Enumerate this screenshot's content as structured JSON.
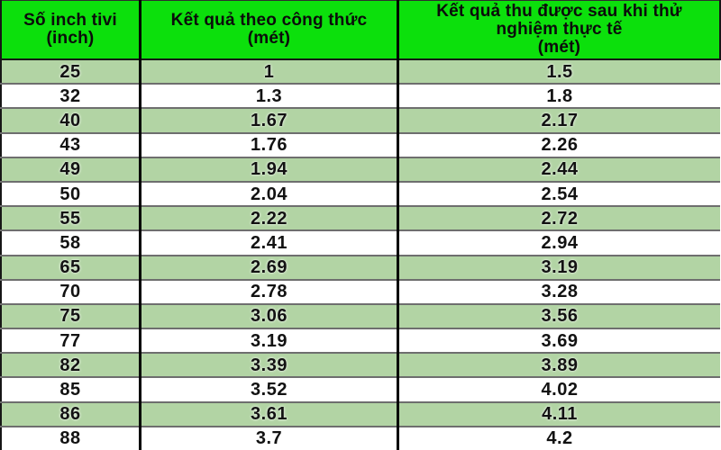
{
  "table": {
    "header": [
      "Số inch tivi\n(inch)",
      "Kết quả theo công thức\n(mét)",
      "Kết quả thu được sau khi thử\nnghiệm thực tế\n(mét)"
    ],
    "rows": [
      [
        "25",
        "1",
        "1.5"
      ],
      [
        "32",
        "1.3",
        "1.8"
      ],
      [
        "40",
        "1.67",
        "2.17"
      ],
      [
        "43",
        "1.76",
        "2.26"
      ],
      [
        "49",
        "1.94",
        "2.44"
      ],
      [
        "50",
        "2.04",
        "2.54"
      ],
      [
        "55",
        "2.22",
        "2.72"
      ],
      [
        "58",
        "2.41",
        "2.94"
      ],
      [
        "65",
        "2.69",
        "3.19"
      ],
      [
        "70",
        "2.78",
        "3.28"
      ],
      [
        "75",
        "3.06",
        "3.56"
      ],
      [
        "77",
        "3.19",
        "3.69"
      ],
      [
        "82",
        "3.39",
        "3.89"
      ],
      [
        "85",
        "3.52",
        "4.02"
      ],
      [
        "86",
        "3.61",
        "4.11"
      ],
      [
        "88",
        "3.7",
        "4.2"
      ]
    ]
  },
  "chart_data": {
    "type": "table",
    "columns": [
      "Số inch tivi (inch)",
      "Kết quả theo công thức (mét)",
      "Kết quả thu được sau khi thử nghiệm thực tế (mét)"
    ],
    "rows": [
      [
        25,
        1,
        1.5
      ],
      [
        32,
        1.3,
        1.8
      ],
      [
        40,
        1.67,
        2.17
      ],
      [
        43,
        1.76,
        2.26
      ],
      [
        49,
        1.94,
        2.44
      ],
      [
        50,
        2.04,
        2.54
      ],
      [
        55,
        2.22,
        2.72
      ],
      [
        58,
        2.41,
        2.94
      ],
      [
        65,
        2.69,
        3.19
      ],
      [
        70,
        2.78,
        3.28
      ],
      [
        75,
        3.06,
        3.56
      ],
      [
        77,
        3.19,
        3.69
      ],
      [
        82,
        3.39,
        3.89
      ],
      [
        85,
        3.52,
        4.02
      ],
      [
        86,
        3.61,
        4.11
      ],
      [
        88,
        3.7,
        4.2
      ]
    ]
  },
  "colors": {
    "header_green": "#0ce00c",
    "row_green": "#b2d4a4",
    "row_white": "#ffffff",
    "row_divider": "#6e6e6e",
    "column_divider": "#000000",
    "text": "#121212"
  }
}
